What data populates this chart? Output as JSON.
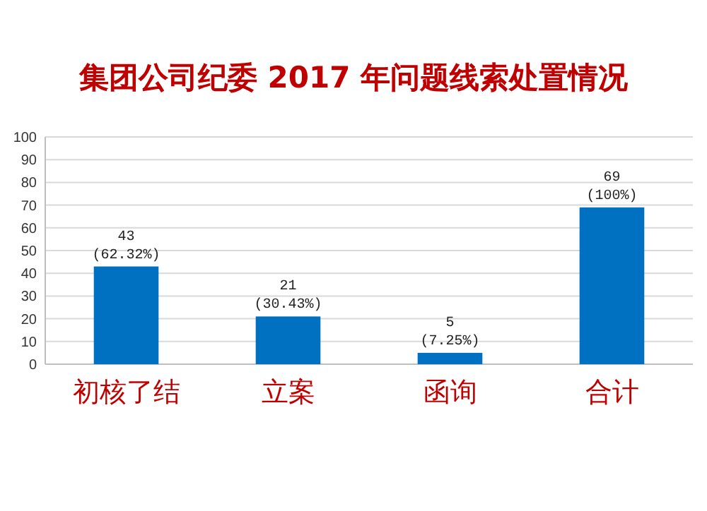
{
  "chart_data": {
    "type": "bar",
    "title": "集团公司纪委 2017 年问题线索处置情况",
    "categories": [
      "初核了结",
      "立案",
      "函询",
      "合计"
    ],
    "values": [
      43,
      21,
      5,
      69
    ],
    "value_labels": [
      "43\n(62.32%)",
      "21\n(30.43%)",
      "5\n(7.25%)",
      "69\n(100%)"
    ],
    "color": "#0070c0",
    "ylim": [
      0,
      100
    ],
    "yticks": [
      0,
      10,
      20,
      30,
      40,
      50,
      60,
      70,
      80,
      90,
      100
    ],
    "grid": "y"
  }
}
